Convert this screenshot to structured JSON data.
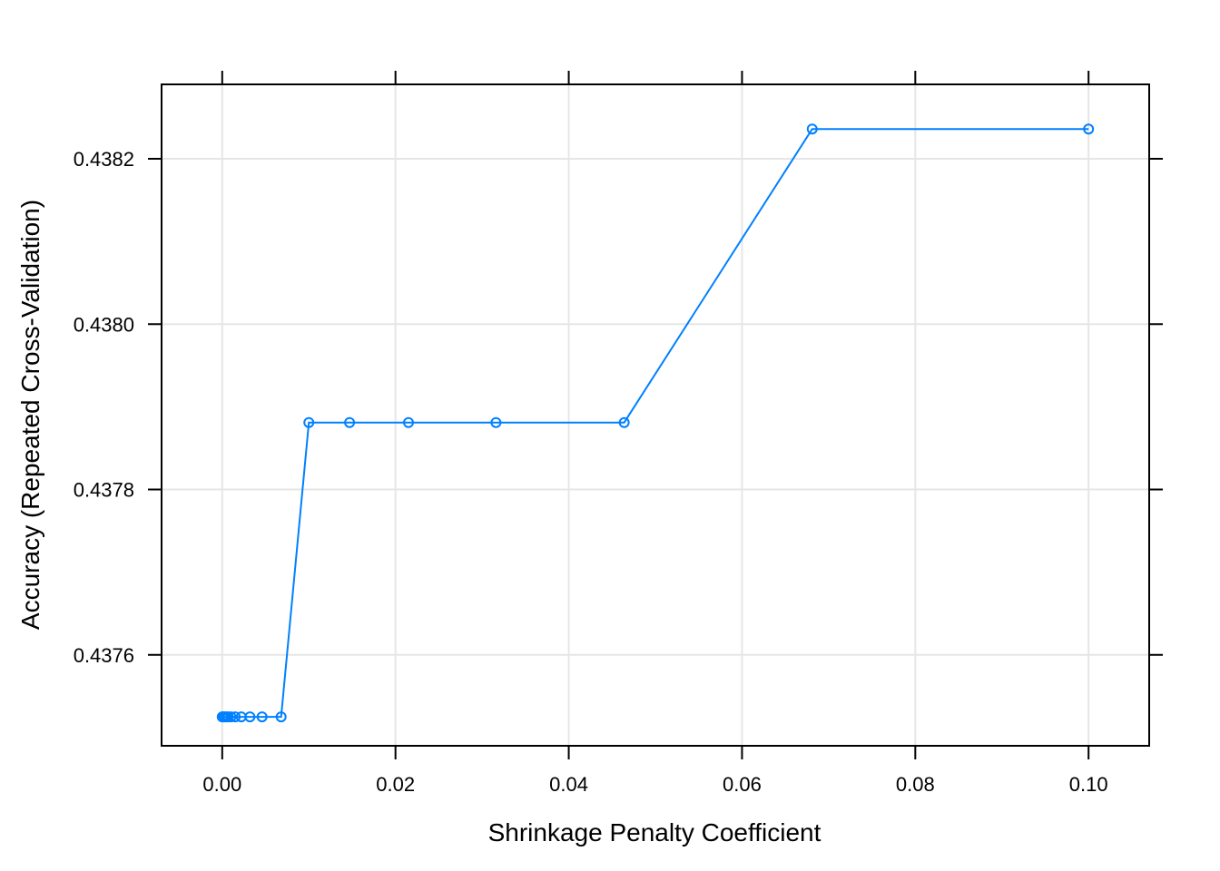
{
  "chart_data": {
    "type": "line",
    "title": "",
    "xlabel": "Shrinkage Penalty Coefficient",
    "ylabel": "Accuracy (Repeated Cross-Validation)",
    "xlim": [
      -0.007,
      0.107
    ],
    "ylim": [
      0.43749,
      0.43829
    ],
    "xticks": [
      0.0,
      0.02,
      0.04,
      0.06,
      0.08,
      0.1
    ],
    "xtick_labels": [
      "0.00",
      "0.02",
      "0.04",
      "0.06",
      "0.08",
      "0.10"
    ],
    "yticks": [
      0.4376,
      0.4378,
      0.438,
      0.4382
    ],
    "ytick_labels": [
      "0.4376",
      "0.4378",
      "0.4380",
      "0.4382"
    ],
    "grid": true,
    "series": [
      {
        "color": "#0080ff",
        "marker": "open-circle",
        "x": [
          0.0,
          0.0001,
          0.0002,
          0.0003,
          0.0005,
          0.0007,
          0.001,
          0.0015,
          0.0022,
          0.0032,
          0.0046,
          0.0068,
          0.01,
          0.0147,
          0.0215,
          0.0316,
          0.0464,
          0.0681,
          0.1
        ],
        "y": [
          0.437525,
          0.437525,
          0.437525,
          0.437525,
          0.437525,
          0.437525,
          0.437525,
          0.437525,
          0.437525,
          0.437525,
          0.437525,
          0.437525,
          0.437881,
          0.437881,
          0.437881,
          0.437881,
          0.437881,
          0.438236,
          0.438236
        ]
      }
    ]
  }
}
